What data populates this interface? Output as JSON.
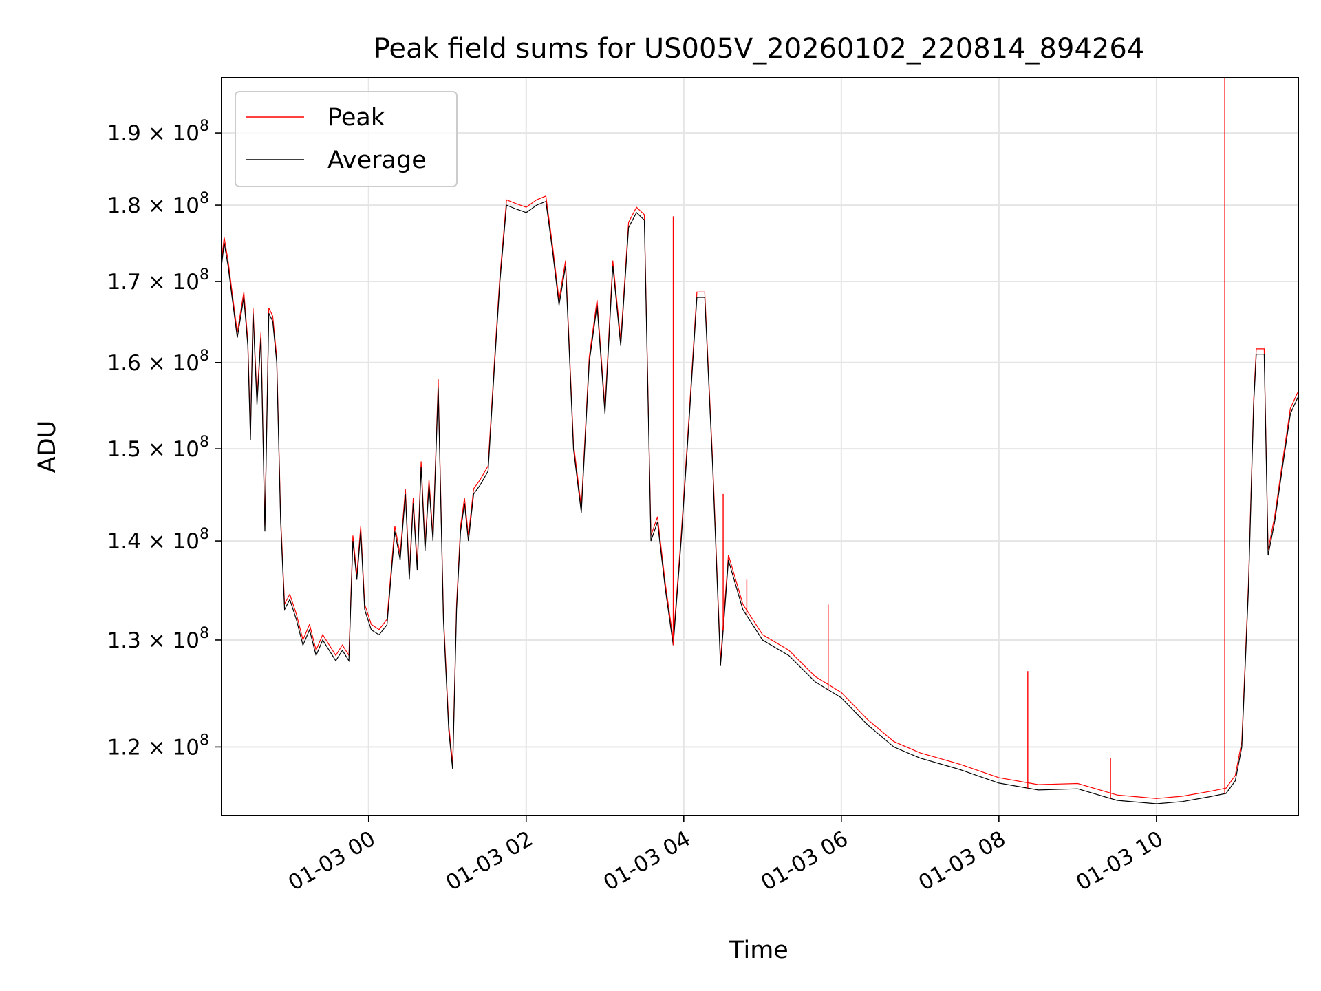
{
  "chart_data": {
    "type": "line",
    "title": "Peak field sums for US005V_20260102_220814_894264",
    "xlabel": "Time",
    "ylabel": "ADU",
    "y_scale": "log",
    "grid": true,
    "legend_position": "top-left",
    "x_ticks": [
      "01-03 00",
      "01-03 02",
      "01-03 04",
      "01-03 06",
      "01-03 08",
      "01-03 10"
    ],
    "y_ticks": [
      {
        "value": 120000000,
        "mantissa": "1.2",
        "base": "10",
        "exp": "8"
      },
      {
        "value": 130000000,
        "mantissa": "1.3",
        "base": "10",
        "exp": "8"
      },
      {
        "value": 140000000,
        "mantissa": "1.4",
        "base": "10",
        "exp": "8"
      },
      {
        "value": 150000000,
        "mantissa": "1.5",
        "base": "10",
        "exp": "8"
      },
      {
        "value": 160000000,
        "mantissa": "1.6",
        "base": "10",
        "exp": "8"
      },
      {
        "value": 170000000,
        "mantissa": "1.7",
        "base": "10",
        "exp": "8"
      },
      {
        "value": 180000000,
        "mantissa": "1.8",
        "base": "10",
        "exp": "8"
      },
      {
        "value": 190000000,
        "mantissa": "1.9",
        "base": "10",
        "exp": "8"
      }
    ],
    "xlim": [
      "2026-01-02T22:08",
      "2026-01-03T11:48"
    ],
    "ylim": [
      114000000,
      198000000
    ],
    "average_points": [
      [
        "2026-01-02T22:08",
        172
      ],
      [
        "2026-01-02T22:10",
        175
      ],
      [
        "2026-01-02T22:13",
        172
      ],
      [
        "2026-01-02T22:16",
        168
      ],
      [
        "2026-01-02T22:20",
        163
      ],
      [
        "2026-01-02T22:25",
        168
      ],
      [
        "2026-01-02T22:28",
        162
      ],
      [
        "2026-01-02T22:30",
        151
      ],
      [
        "2026-01-02T22:32",
        166
      ],
      [
        "2026-01-02T22:35",
        155
      ],
      [
        "2026-01-02T22:38",
        163
      ],
      [
        "2026-01-02T22:41",
        141
      ],
      [
        "2026-01-02T22:44",
        166
      ],
      [
        "2026-01-02T22:47",
        165
      ],
      [
        "2026-01-02T22:50",
        160
      ],
      [
        "2026-01-02T22:53",
        142
      ],
      [
        "2026-01-02T22:56",
        133
      ],
      [
        "2026-01-02T23:00",
        134
      ],
      [
        "2026-01-02T23:05",
        132
      ],
      [
        "2026-01-02T23:10",
        129.5
      ],
      [
        "2026-01-02T23:15",
        131
      ],
      [
        "2026-01-02T23:20",
        128.5
      ],
      [
        "2026-01-02T23:25",
        130
      ],
      [
        "2026-01-02T23:30",
        129
      ],
      [
        "2026-01-02T23:35",
        128
      ],
      [
        "2026-01-02T23:40",
        129
      ],
      [
        "2026-01-02T23:45",
        128
      ],
      [
        "2026-01-02T23:48",
        140
      ],
      [
        "2026-01-02T23:51",
        136
      ],
      [
        "2026-01-02T23:54",
        141
      ],
      [
        "2026-01-02T23:57",
        133
      ],
      [
        "2026-01-03T00:02",
        131
      ],
      [
        "2026-01-03T00:08",
        130.5
      ],
      [
        "2026-01-03T00:14",
        131.5
      ],
      [
        "2026-01-03T00:20",
        141
      ],
      [
        "2026-01-03T00:24",
        138
      ],
      [
        "2026-01-03T00:28",
        145
      ],
      [
        "2026-01-03T00:31",
        136
      ],
      [
        "2026-01-03T00:34",
        144
      ],
      [
        "2026-01-03T00:37",
        137
      ],
      [
        "2026-01-03T00:40",
        148
      ],
      [
        "2026-01-03T00:43",
        139
      ],
      [
        "2026-01-03T00:46",
        146
      ],
      [
        "2026-01-03T00:49",
        140
      ],
      [
        "2026-01-03T00:53",
        157
      ],
      [
        "2026-01-03T00:57",
        132
      ],
      [
        "2026-01-03T01:01",
        121.5
      ],
      [
        "2026-01-03T01:04",
        118
      ],
      [
        "2026-01-03T01:07",
        133
      ],
      [
        "2026-01-03T01:10",
        141
      ],
      [
        "2026-01-03T01:13",
        144
      ],
      [
        "2026-01-03T01:16",
        140
      ],
      [
        "2026-01-03T01:20",
        145
      ],
      [
        "2026-01-03T01:25",
        146
      ],
      [
        "2026-01-03T01:31",
        147.5
      ],
      [
        "2026-01-03T01:36",
        160
      ],
      [
        "2026-01-03T01:40",
        170
      ],
      [
        "2026-01-03T01:45",
        180
      ],
      [
        "2026-01-03T01:52",
        179.5
      ],
      [
        "2026-01-03T02:00",
        179
      ],
      [
        "2026-01-03T02:08",
        180
      ],
      [
        "2026-01-03T02:15",
        180.5
      ],
      [
        "2026-01-03T02:20",
        174
      ],
      [
        "2026-01-03T02:25",
        167
      ],
      [
        "2026-01-03T02:30",
        172
      ],
      [
        "2026-01-03T02:36",
        150
      ],
      [
        "2026-01-03T02:42",
        143
      ],
      [
        "2026-01-03T02:48",
        160
      ],
      [
        "2026-01-03T02:54",
        167
      ],
      [
        "2026-01-03T03:00",
        154
      ],
      [
        "2026-01-03T03:06",
        172
      ],
      [
        "2026-01-03T03:12",
        162
      ],
      [
        "2026-01-03T03:18",
        177
      ],
      [
        "2026-01-03T03:24",
        179
      ],
      [
        "2026-01-03T03:30",
        178
      ],
      [
        "2026-01-03T03:35",
        140
      ],
      [
        "2026-01-03T03:40",
        142
      ],
      [
        "2026-01-03T03:46",
        135
      ],
      [
        "2026-01-03T03:52",
        129.5
      ],
      [
        "2026-01-03T03:58",
        140
      ],
      [
        "2026-01-03T04:04",
        153
      ],
      [
        "2026-01-03T04:10",
        168
      ],
      [
        "2026-01-03T04:16",
        168
      ],
      [
        "2026-01-03T04:22",
        148
      ],
      [
        "2026-01-03T04:28",
        127.5
      ],
      [
        "2026-01-03T04:34",
        138
      ],
      [
        "2026-01-03T04:45",
        133
      ],
      [
        "2026-01-03T05:00",
        130
      ],
      [
        "2026-01-03T05:20",
        128.5
      ],
      [
        "2026-01-03T05:40",
        126
      ],
      [
        "2026-01-03T06:00",
        124.5
      ],
      [
        "2026-01-03T06:20",
        122
      ],
      [
        "2026-01-03T06:40",
        120
      ],
      [
        "2026-01-03T07:00",
        119
      ],
      [
        "2026-01-03T07:30",
        118
      ],
      [
        "2026-01-03T08:00",
        116.8
      ],
      [
        "2026-01-03T08:30",
        116.2
      ],
      [
        "2026-01-03T09:00",
        116.3
      ],
      [
        "2026-01-03T09:30",
        115.3
      ],
      [
        "2026-01-03T10:00",
        115
      ],
      [
        "2026-01-03T10:20",
        115.2
      ],
      [
        "2026-01-03T10:40",
        115.6
      ],
      [
        "2026-01-03T10:53",
        115.9
      ],
      [
        "2026-01-03T11:00",
        117
      ],
      [
        "2026-01-03T11:05",
        120
      ],
      [
        "2026-01-03T11:10",
        135
      ],
      [
        "2026-01-03T11:14",
        155
      ],
      [
        "2026-01-03T11:16",
        161
      ],
      [
        "2026-01-03T11:22",
        161
      ],
      [
        "2026-01-03T11:25",
        138.5
      ],
      [
        "2026-01-03T11:30",
        142
      ],
      [
        "2026-01-03T11:36",
        148
      ],
      [
        "2026-01-03T11:42",
        154
      ],
      [
        "2026-01-03T11:48",
        156
      ]
    ],
    "peak_spikes": [
      [
        "2026-01-03T00:53",
        158
      ],
      [
        "2026-01-03T03:52",
        178.5
      ],
      [
        "2026-01-03T04:30",
        145
      ],
      [
        "2026-01-03T04:48",
        136
      ],
      [
        "2026-01-03T05:50",
        133.5
      ],
      [
        "2026-01-03T08:22",
        127
      ],
      [
        "2026-01-03T09:25",
        119
      ],
      [
        "2026-01-03T10:52",
        198
      ]
    ],
    "series": [
      {
        "name": "Peak",
        "color": "#ff0000"
      },
      {
        "name": "Average",
        "color": "#000000"
      }
    ]
  }
}
